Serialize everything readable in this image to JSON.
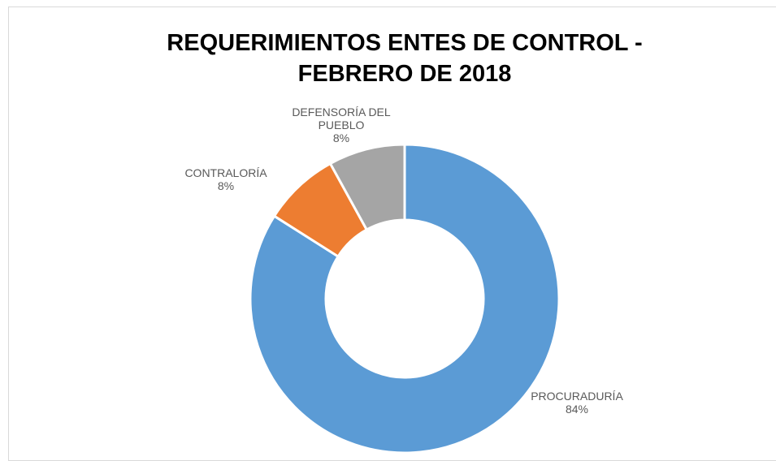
{
  "chart_data": {
    "type": "donut",
    "title": "REQUERIMIENTOS ENTES DE CONTROL - FEBRERO DE 2018",
    "categories": [
      "PROCURADURÍA",
      "CONTRALORÍA",
      "DEFENSORÍA DEL PUEBLO"
    ],
    "values": [
      84,
      8,
      8
    ],
    "value_labels": [
      "84%",
      "8%",
      "8%"
    ],
    "colors": [
      "#5b9bd5",
      "#ed7d31",
      "#a5a5a5"
    ]
  }
}
